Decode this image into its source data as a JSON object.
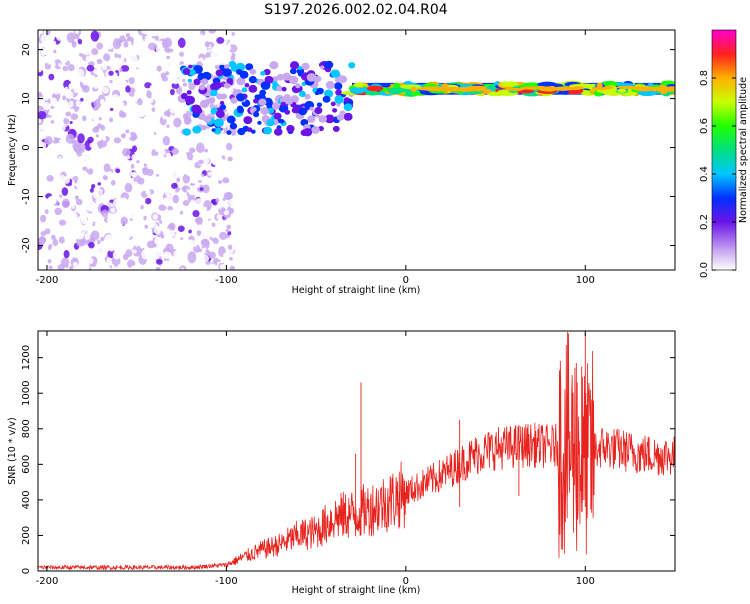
{
  "title": "S197.2026.002.02.04.R04",
  "chart_data": [
    {
      "type": "heatmap",
      "xlabel": "Height of straight line (km)",
      "ylabel": "Frequency (Hz)",
      "xlim": [
        -205,
        150
      ],
      "ylim": [
        -25,
        24
      ],
      "xticks": [
        -200,
        -100,
        0,
        100
      ],
      "yticks": [
        -20,
        -10,
        0,
        10,
        20
      ],
      "tone_frequency_hz": 12,
      "colorbar": {
        "label": "Normalized spectral amplitude",
        "range": [
          0,
          1
        ],
        "ticks": [
          0.0,
          0.2,
          0.4,
          0.6,
          0.8
        ]
      },
      "description_regions": [
        {
          "x_range": [
            -205,
            -100
          ],
          "level": 0.1
        },
        {
          "x_range": [
            -125,
            -30
          ],
          "level": 0.3
        },
        {
          "x_range": [
            -30,
            150
          ],
          "level": 0.9
        }
      ]
    },
    {
      "type": "line",
      "xlabel": "Height of straight line (km)",
      "ylabel": "SNR (10 * v/v)",
      "xlim": [
        -205,
        150
      ],
      "ylim": [
        0,
        1350
      ],
      "xticks": [
        -200,
        -100,
        0,
        100
      ],
      "yticks": [
        0,
        200,
        400,
        600,
        800,
        1000,
        1200
      ],
      "color": "#e8231e",
      "envelope": {
        "x": [
          -205,
          -120,
          -100,
          -90,
          -80,
          -70,
          -60,
          -50,
          -40,
          -30,
          -20,
          -10,
          0,
          10,
          20,
          30,
          40,
          50,
          60,
          70,
          80,
          90,
          95,
          100,
          105,
          110,
          120,
          130,
          140,
          150
        ],
        "y": [
          20,
          20,
          35,
          80,
          120,
          150,
          200,
          220,
          300,
          320,
          350,
          390,
          440,
          490,
          540,
          600,
          660,
          690,
          700,
          710,
          700,
          710,
          680,
          600,
          680,
          700,
          680,
          660,
          650,
          650
        ]
      },
      "spikes": [
        {
          "x": -25,
          "y": 1060
        },
        {
          "x": -28,
          "y": 660
        },
        {
          "x": 30,
          "y": 850
        },
        {
          "x": 63,
          "y": 820
        },
        {
          "x": 90,
          "y": 1000
        },
        {
          "x": 95,
          "y": 1170
        },
        {
          "x": 98,
          "y": 1150
        },
        {
          "x": 100,
          "y": 1340
        }
      ]
    }
  ]
}
